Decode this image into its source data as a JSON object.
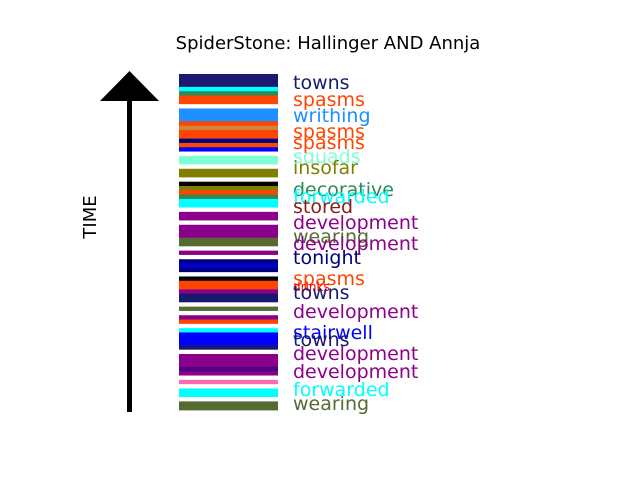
{
  "chart_data": {
    "type": "timeline-stack",
    "title": "SpiderStone: Hallinger AND Annja",
    "ylabel": "TIME",
    "stripes": [
      {
        "color": "#191970"
      },
      {
        "color": "#191970"
      },
      {
        "color": "#191970"
      },
      {
        "color": "#00ffff"
      },
      {
        "color": "#2e8b57"
      },
      {
        "color": "#ff4500"
      },
      {
        "color": "#ff4500"
      },
      {
        "color": "#ffffff"
      },
      {
        "color": "#1e90ff"
      },
      {
        "color": "#1e90ff"
      },
      {
        "color": "#1e90ff"
      },
      {
        "color": "#ff4500"
      },
      {
        "color": "#cd853f"
      },
      {
        "color": "#ff4500"
      },
      {
        "color": "#ff4500"
      },
      {
        "color": "#000080"
      },
      {
        "color": "#ff4500"
      },
      {
        "color": "#0000ff"
      },
      {
        "color": "#ffffff"
      },
      {
        "color": "#7fffd4"
      },
      {
        "color": "#7fffd4"
      },
      {
        "color": "#ffffff"
      },
      {
        "color": "#808000"
      },
      {
        "color": "#808000"
      },
      {
        "color": "#ffffff"
      },
      {
        "color": "#000000"
      },
      {
        "color": "#808000"
      },
      {
        "color": "#ff4500"
      },
      {
        "color": "#2e8b57"
      },
      {
        "color": "#00ffff"
      },
      {
        "color": "#00ffff"
      },
      {
        "color": "#ffffff"
      },
      {
        "color": "#8b008b"
      },
      {
        "color": "#8b008b"
      },
      {
        "color": "#ffffff"
      },
      {
        "color": "#8b008b"
      },
      {
        "color": "#8b008b"
      },
      {
        "color": "#8b008b"
      },
      {
        "color": "#556b2f"
      },
      {
        "color": "#556b2f"
      },
      {
        "color": "#ffffff"
      },
      {
        "color": "#8b008b"
      },
      {
        "color": "#ffffff"
      },
      {
        "color": "#000080"
      },
      {
        "color": "#0000cd"
      },
      {
        "color": "#000080"
      },
      {
        "color": "#ffffff"
      },
      {
        "color": "#000000"
      },
      {
        "color": "#ff4500"
      },
      {
        "color": "#ff4500"
      },
      {
        "color": "#8b008b"
      },
      {
        "color": "#191970"
      },
      {
        "color": "#191970"
      },
      {
        "color": "#ffffff"
      },
      {
        "color": "#556b2f"
      },
      {
        "color": "#ffffff"
      },
      {
        "color": "#8b008b"
      },
      {
        "color": "#ff4500"
      },
      {
        "color": "#ffffff"
      },
      {
        "color": "#00ffff"
      },
      {
        "color": "#0000ff"
      },
      {
        "color": "#0000ff"
      },
      {
        "color": "#0000ff"
      },
      {
        "color": "#191970"
      },
      {
        "color": "#ffffff"
      },
      {
        "color": "#8b008b"
      },
      {
        "color": "#8b008b"
      },
      {
        "color": "#8b008b"
      },
      {
        "color": "#4b0082"
      },
      {
        "color": "#8b008b"
      },
      {
        "color": "#ffffff"
      },
      {
        "color": "#ff69b4"
      },
      {
        "color": "#ffffff"
      },
      {
        "color": "#00ffff"
      },
      {
        "color": "#00ffff"
      },
      {
        "color": "#ffffff"
      },
      {
        "color": "#556b2f"
      },
      {
        "color": "#556b2f"
      }
    ],
    "labels": [
      {
        "text": "towns",
        "color": "#191970"
      },
      {
        "text": "spasms",
        "color": "#ff4500"
      },
      {
        "text": "writhing",
        "color": "#1e90ff"
      },
      {
        "text": "spasms",
        "color": "#ff4500"
      },
      {
        "text": "spasms",
        "color": "#ff4500"
      },
      {
        "text": "squads",
        "color": "#7fffd4"
      },
      {
        "text": "insofar",
        "color": "#808000"
      },
      {
        "text": "decorative",
        "color": "#2e8b57"
      },
      {
        "text": "forwarded",
        "color": "#00ffff"
      },
      {
        "text": "stored",
        "color": "#8b1a1a"
      },
      {
        "text": "development",
        "color": "#8b008b"
      },
      {
        "text": "wearing",
        "color": "#556b2f"
      },
      {
        "text": "development",
        "color": "#8b008b"
      },
      {
        "text": "tonight",
        "color": "#000080"
      },
      {
        "text": "spasms",
        "color": "#ff4500"
      },
      {
        "text": "drinks",
        "color": "#ff0000"
      },
      {
        "text": "towns",
        "color": "#191970"
      },
      {
        "text": "development",
        "color": "#8b008b"
      },
      {
        "text": "stairwell",
        "color": "#0000ff"
      },
      {
        "text": "towns",
        "color": "#191970"
      },
      {
        "text": "development",
        "color": "#8b008b"
      },
      {
        "text": "development",
        "color": "#8b008b"
      },
      {
        "text": "forwarded",
        "color": "#00ffff"
      },
      {
        "text": "wearing",
        "color": "#556b2f"
      }
    ]
  }
}
